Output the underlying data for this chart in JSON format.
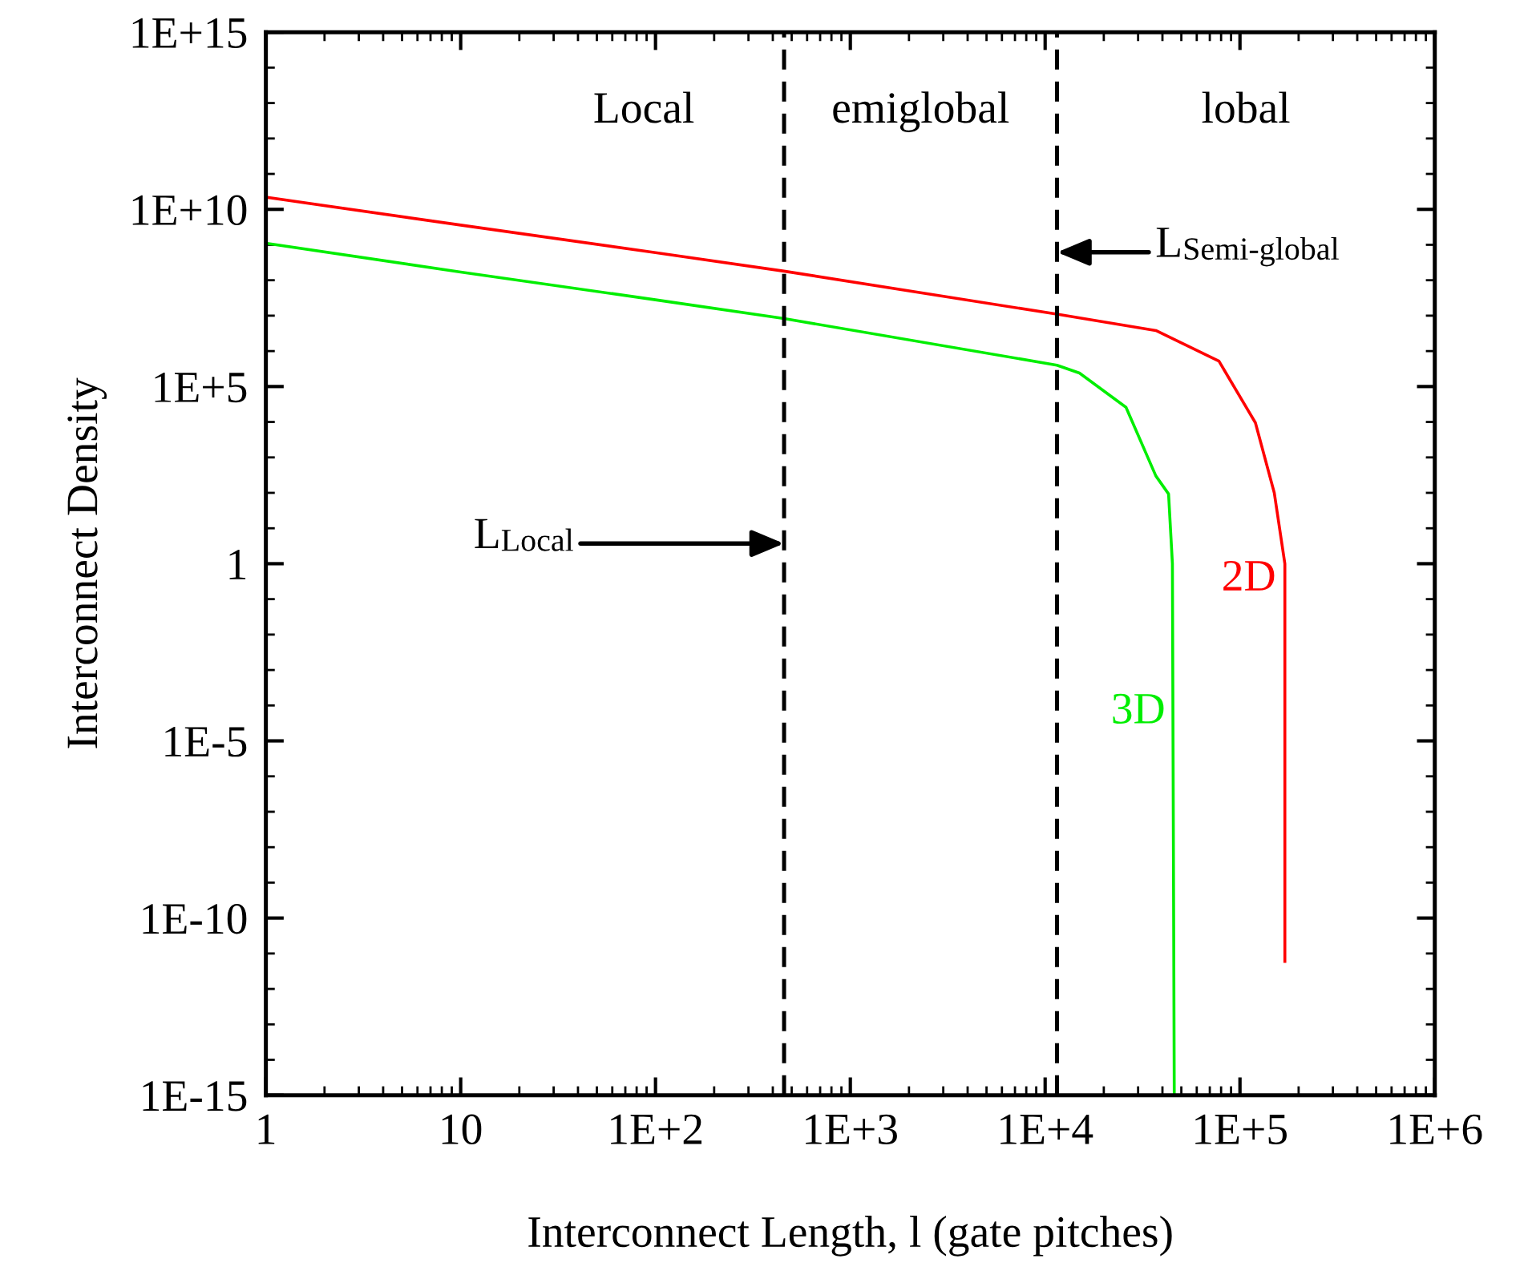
{
  "chart_data": {
    "type": "line",
    "xlabel": "Interconnect Length, l (gate pitches)",
    "ylabel": "Interconnect Density",
    "log": "xy",
    "grid": false,
    "legend": false,
    "marker": "none",
    "line_style": "solid",
    "xlim": [
      1,
      1000000
    ],
    "ylim": [
      1e-15,
      1000000000000000.0
    ],
    "xticks": [
      1,
      10,
      {
        "value": 100,
        "label": "1E+2"
      },
      {
        "value": 1000,
        "label": "1E+3"
      },
      {
        "value": 10000,
        "label": "1E+4"
      },
      {
        "value": 100000,
        "label": "1E+5"
      },
      {
        "value": 1000000,
        "label": "1E+6"
      }
    ],
    "yticks": [
      {
        "value": 1e-15,
        "label": "1E-15"
      },
      {
        "value": 1e-10,
        "label": "1E-10"
      },
      {
        "value": 1e-05,
        "label": "1E-5"
      },
      1,
      {
        "value": 100000,
        "label": "1E+5"
      },
      {
        "value": 10000000000.0,
        "label": "1E+10"
      },
      {
        "value": 1000000000000000.0,
        "label": "1E+15"
      }
    ],
    "series": [
      {
        "name": "2D",
        "color": "#ff0000",
        "x": [
          1,
          10,
          100,
          457,
          11500,
          37000,
          78000,
          120000,
          150000,
          170000,
          170000
        ],
        "values": [
          22000000000.0,
          3600000000.0,
          600000000.0,
          180000000.0,
          11000000.0,
          3800000.0,
          520000.0,
          9500.0,
          100,
          1,
          6e-12
        ]
      },
      {
        "name": "3D",
        "color": "#00ee00",
        "x": [
          1,
          10,
          100,
          457,
          11500,
          15000,
          26000,
          37000,
          43000,
          45000,
          46000
        ],
        "values": [
          1100000000.0,
          170000000.0,
          28000000.0,
          8300000.0,
          400000.0,
          240000.0,
          26000.0,
          300,
          93,
          1,
          1e-15
        ]
      }
    ],
    "ref_lines": [
      {
        "axis": "x",
        "value": 457,
        "label": "L$_{Local}$",
        "color": "#000000",
        "line_style": "dashed"
      },
      {
        "axis": "x",
        "value": 11500,
        "label": "L$_{Semi-global}$",
        "color": "#000000",
        "line_style": "dashed"
      }
    ],
    "annotations": [
      "Local",
      "emiglobal",
      "lobal"
    ]
  }
}
